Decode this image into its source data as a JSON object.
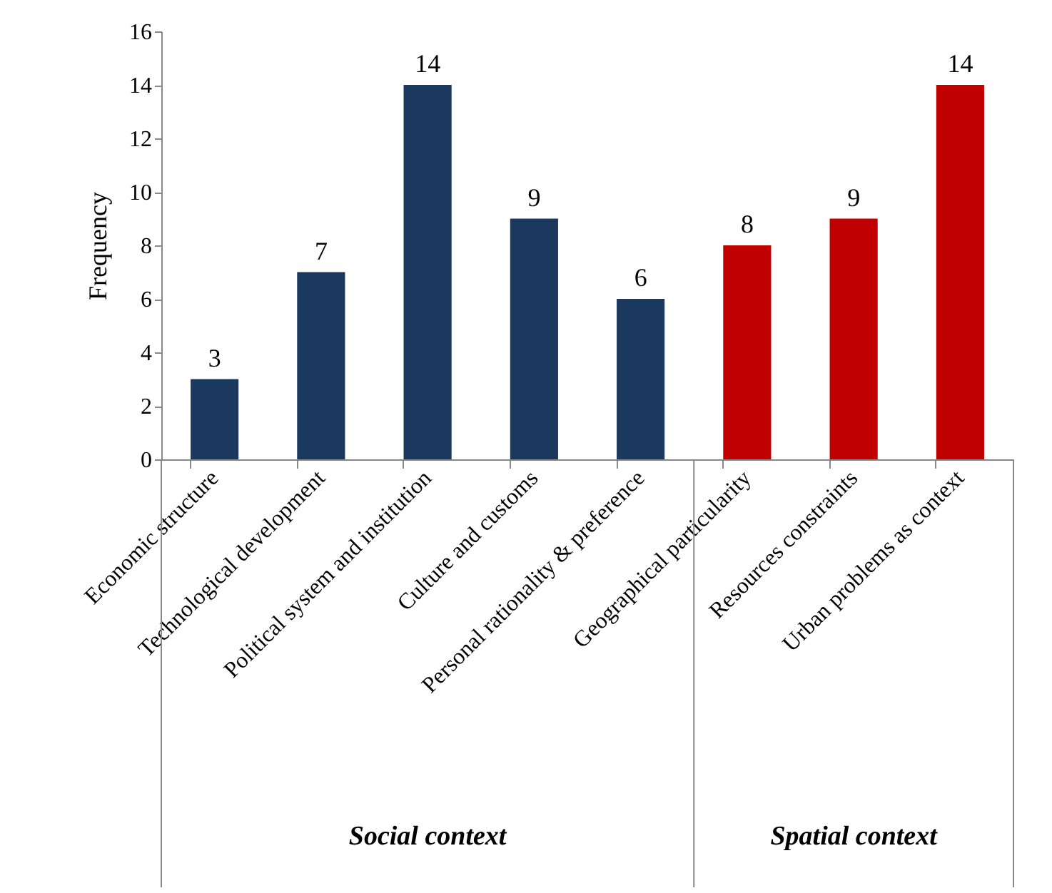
{
  "chart_data": {
    "type": "bar",
    "ylabel": "Frequency",
    "categories": [
      "Economic structure",
      "Technological development",
      "Political system and institution",
      "Culture and customs",
      "Personal rationality & preference",
      "Geographical particularity",
      "Resources constraints",
      "Urban problems as context"
    ],
    "series": [
      {
        "color": "#1b385e",
        "values": [
          3,
          7,
          14,
          9,
          6,
          null,
          null,
          null
        ]
      },
      {
        "color": "#c00000",
        "values": [
          null,
          null,
          null,
          null,
          null,
          8,
          9,
          14
        ]
      }
    ],
    "annotations": [
      "Social context",
      "Spatial context"
    ],
    "ylim": [
      0,
      16
    ],
    "yticks": [
      0,
      2,
      4,
      6,
      8,
      10,
      12,
      14,
      16
    ],
    "data_labels": true,
    "grid": false
  }
}
